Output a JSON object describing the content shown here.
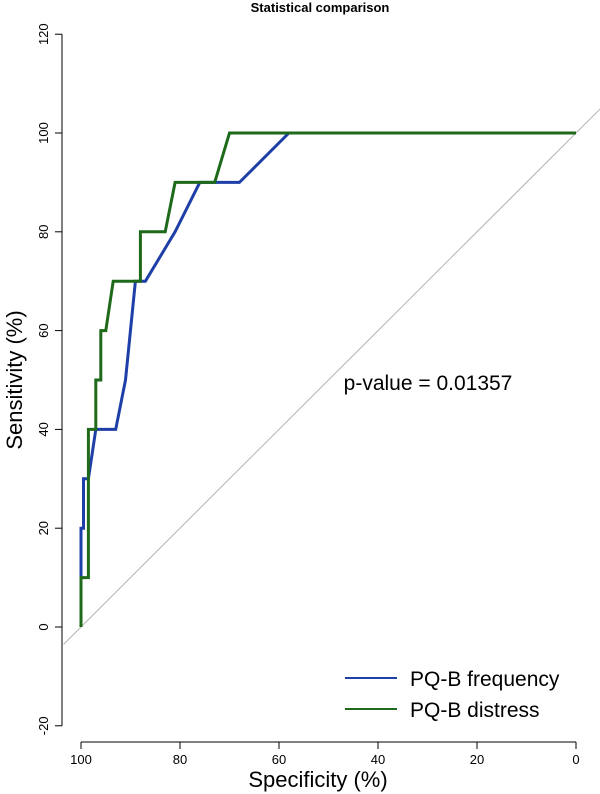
{
  "chart_data": {
    "type": "line",
    "title": "Statistical comparison",
    "xlabel": "Specificity (%)",
    "ylabel": "Sensitivity (%)",
    "xlim": [
      100,
      0
    ],
    "ylim": [
      -20,
      120
    ],
    "x_ticks": [
      100,
      80,
      60,
      40,
      20,
      0
    ],
    "y_ticks": [
      -20,
      0,
      20,
      40,
      60,
      80,
      100,
      120
    ],
    "annotation": "p-value = 0.01357",
    "legend_position": "bottom-right",
    "reference_line": {
      "from": [
        100,
        0
      ],
      "to": [
        0,
        100
      ],
      "color": "#b3b3b3"
    },
    "series": [
      {
        "name": "PQ-B frequency",
        "color": "#1f3fa8",
        "x": [
          100,
          100,
          99.5,
          99.5,
          98.5,
          97,
          97,
          93,
          91,
          89,
          87,
          81,
          76,
          73,
          68,
          58,
          0
        ],
        "y": [
          0,
          20,
          20,
          30,
          30,
          40,
          40,
          40,
          50,
          70,
          70,
          80,
          90,
          90,
          90,
          100,
          100
        ]
      },
      {
        "name": "PQ-B distress",
        "color": "#1e6a1a",
        "x": [
          100,
          100,
          99.5,
          99.5,
          98.5,
          98.5,
          97,
          97,
          96,
          96,
          95,
          95,
          93.5,
          93.5,
          88,
          88,
          83,
          81,
          81,
          73,
          70,
          70,
          0
        ],
        "y": [
          0,
          10,
          10,
          10,
          10,
          40,
          40,
          50,
          50,
          60,
          60,
          60,
          70,
          70,
          70,
          80,
          80,
          90,
          90,
          90,
          100,
          100,
          100
        ]
      }
    ]
  }
}
